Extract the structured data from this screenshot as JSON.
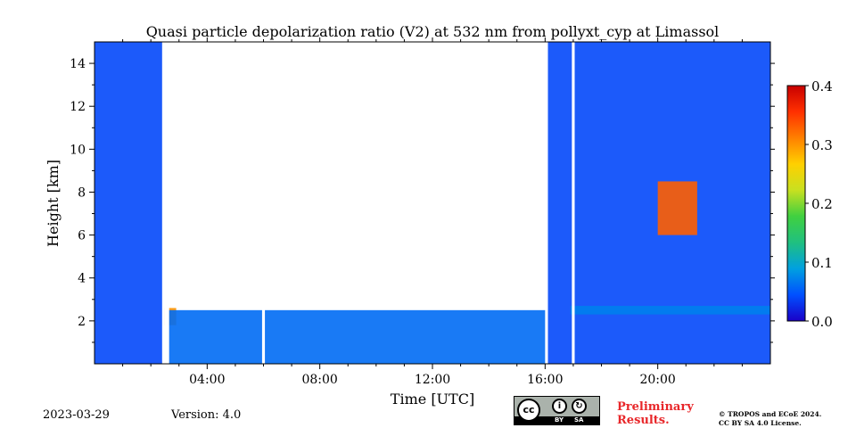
{
  "chart_data": {
    "type": "heatmap",
    "title": "Quasi particle depolarization ratio (V2) at 532 nm from pollyxt_cyp at Limassol",
    "xlabel": "Time [UTC]",
    "ylabel": "Height [km]",
    "x_range_hours": [
      0,
      24
    ],
    "y_range_km": [
      0,
      15
    ],
    "x_ticks": [
      {
        "value": 4,
        "label": "04:00"
      },
      {
        "value": 8,
        "label": "08:00"
      },
      {
        "value": 12,
        "label": "12:00"
      },
      {
        "value": 16,
        "label": "16:00"
      },
      {
        "value": 20,
        "label": "20:00"
      }
    ],
    "y_ticks": [
      {
        "value": 2,
        "label": "2"
      },
      {
        "value": 4,
        "label": "4"
      },
      {
        "value": 6,
        "label": "6"
      },
      {
        "value": 8,
        "label": "8"
      },
      {
        "value": 10,
        "label": "10"
      },
      {
        "value": 12,
        "label": "12"
      },
      {
        "value": 14,
        "label": "14"
      }
    ],
    "colorbar": {
      "range": [
        0.0,
        0.4
      ],
      "ticks": [
        {
          "value": 0.0,
          "label": "0.0"
        },
        {
          "value": 0.1,
          "label": "0.1"
        },
        {
          "value": 0.2,
          "label": "0.2"
        },
        {
          "value": 0.3,
          "label": "0.3"
        },
        {
          "value": 0.4,
          "label": "0.4"
        }
      ],
      "colors": [
        "#1a00c8",
        "#0050ff",
        "#00a0e0",
        "#20c080",
        "#40d040",
        "#c8e020",
        "#ffd000",
        "#ff8000",
        "#ff3000",
        "#c80000"
      ]
    },
    "regions": [
      {
        "name": "night-signal-early",
        "t0": 0.0,
        "t1": 2.4,
        "h0": 0.0,
        "h1": 15.0,
        "value": 0.04
      },
      {
        "name": "early-aerosol-layer",
        "t0": 2.5,
        "t1": 2.9,
        "h0": 1.8,
        "h1": 2.6,
        "value": 0.3
      },
      {
        "name": "daytime-boundary-layer",
        "t0": 2.6,
        "t1": 16.0,
        "h0": 0.0,
        "h1": 2.5,
        "value": 0.06
      },
      {
        "name": "evening-signal",
        "t0": 16.1,
        "t1": 24.0,
        "h0": 0.0,
        "h1": 15.0,
        "value": 0.04
      },
      {
        "name": "cirrus-cloud",
        "t0": 20.0,
        "t1": 21.4,
        "h0": 6.0,
        "h1": 8.5,
        "value": 0.33
      },
      {
        "name": "low-aerosol-layer-evening",
        "t0": 16.9,
        "t1": 24.0,
        "h0": 2.3,
        "h1": 2.7,
        "value": 0.07
      }
    ],
    "data_gaps_hours": [
      [
        2.5,
        2.65
      ],
      [
        5.95,
        6.05
      ],
      [
        16.95,
        17.05
      ]
    ]
  },
  "footer": {
    "date": "2023-03-29",
    "version": "Version: 4.0",
    "preliminary": [
      "Preliminary",
      "Results."
    ],
    "copyright": [
      "© TROPOS and ECoE 2024.",
      "CC BY SA 4.0 License."
    ],
    "license_badge": {
      "cc": "cc",
      "by": "BY",
      "sa": "SA"
    }
  }
}
